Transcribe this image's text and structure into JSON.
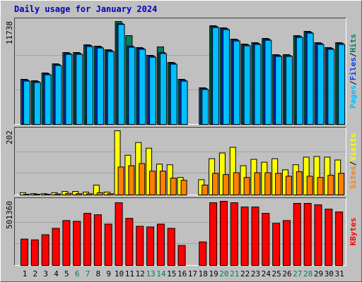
{
  "chart_data": {
    "type": "bar",
    "title": "Daily usage for January 2024",
    "categories": [
      "1",
      "2",
      "3",
      "4",
      "5",
      "6",
      "7",
      "8",
      "9",
      "10",
      "11",
      "12",
      "13",
      "14",
      "15",
      "16",
      "17",
      "18",
      "19",
      "20",
      "21",
      "22",
      "23",
      "24",
      "25",
      "26",
      "27",
      "28",
      "29",
      "30",
      "31"
    ],
    "category_colors": [
      "#000000",
      "#000000",
      "#000000",
      "#000000",
      "#000000",
      "#00805C",
      "#00805C",
      "#000000",
      "#000000",
      "#000000",
      "#000000",
      "#000000",
      "#00805C",
      "#00805C",
      "#000000",
      "#000000",
      "#000000",
      "#000000",
      "#000000",
      "#00805C",
      "#00805C",
      "#000000",
      "#000000",
      "#000000",
      "#000000",
      "#000000",
      "#00805C",
      "#00805C",
      "#000000",
      "#000000",
      "#000000"
    ],
    "legend_separator": "/",
    "panels": [
      {
        "ylim": [
          0,
          11738
        ],
        "yticks": [
          11738
        ],
        "series": [
          {
            "name": "Hits",
            "color": "#00805C",
            "values": [
              5145,
              4985,
              5870,
              6915,
              8200,
              8200,
              9085,
              8925,
              8520,
              11738,
              10130,
              8765,
              7880,
              8845,
              7075,
              5145,
              0,
              4180,
              11255,
              11015,
              9730,
              9165,
              9325,
              9810,
              7960,
              7960,
              10130,
              10615,
              9325,
              8765,
              9325
            ]
          },
          {
            "name": "Files",
            "color": "#0040FF",
            "values": [
              5060,
              4900,
              5780,
              6830,
              8110,
              8110,
              9000,
              8840,
              8430,
              11520,
              8925,
              8680,
              7790,
              8200,
              6990,
              5060,
              0,
              4100,
              11170,
              10930,
              9640,
              9080,
              9240,
              9720,
              7870,
              7870,
              10040,
              10530,
              9240,
              8680,
              9240
            ]
          },
          {
            "name": "Pages",
            "color": "#00C0FF",
            "values": [
              4940,
              4780,
              5660,
              6710,
              7990,
              7990,
              8880,
              8720,
              8310,
              11400,
              8800,
              8560,
              7670,
              8080,
              6870,
              4940,
              0,
              3980,
              11050,
              10810,
              9520,
              8960,
              9120,
              9600,
              7750,
              7750,
              9920,
              10410,
              9120,
              8560,
              9120
            ]
          }
        ]
      },
      {
        "ylim": [
          0,
          202
        ],
        "yticks": [
          202
        ],
        "series": [
          {
            "name": "Visits",
            "color": "#FFFF00",
            "values": [
              7,
              4,
              4,
              7,
              11,
              11,
              9,
              31,
              9,
              202,
              125,
              165,
              147,
              97,
              95,
              55,
              0,
              48,
              114,
              132,
              150,
              92,
              112,
              103,
              114,
              79,
              95,
              119,
              121,
              119,
              110
            ]
          },
          {
            "name": "Sites",
            "color": "#FF8000",
            "values": [
              2,
              2,
              2,
              3,
              5,
              4,
              4,
              7,
              4,
              88,
              92,
              99,
              75,
              75,
              53,
              46,
              0,
              31,
              68,
              64,
              70,
              55,
              70,
              70,
              68,
              59,
              73,
              59,
              55,
              62,
              68
            ]
          }
        ]
      },
      {
        "ylim": [
          0,
          501360
        ],
        "yticks": [
          501360
        ],
        "series": [
          {
            "name": "KBytes",
            "color": "#FF0000",
            "values": [
              206000,
              200000,
              240000,
              290000,
              351000,
              345000,
              407000,
              396000,
              323000,
              490000,
              368000,
              306000,
              301000,
              323000,
              290000,
              156000,
              0,
              184000,
              490000,
              501360,
              490000,
              457000,
              457000,
              407000,
              329000,
              351000,
              485000,
              485000,
              474000,
              440000,
              418000
            ]
          }
        ]
      }
    ]
  }
}
